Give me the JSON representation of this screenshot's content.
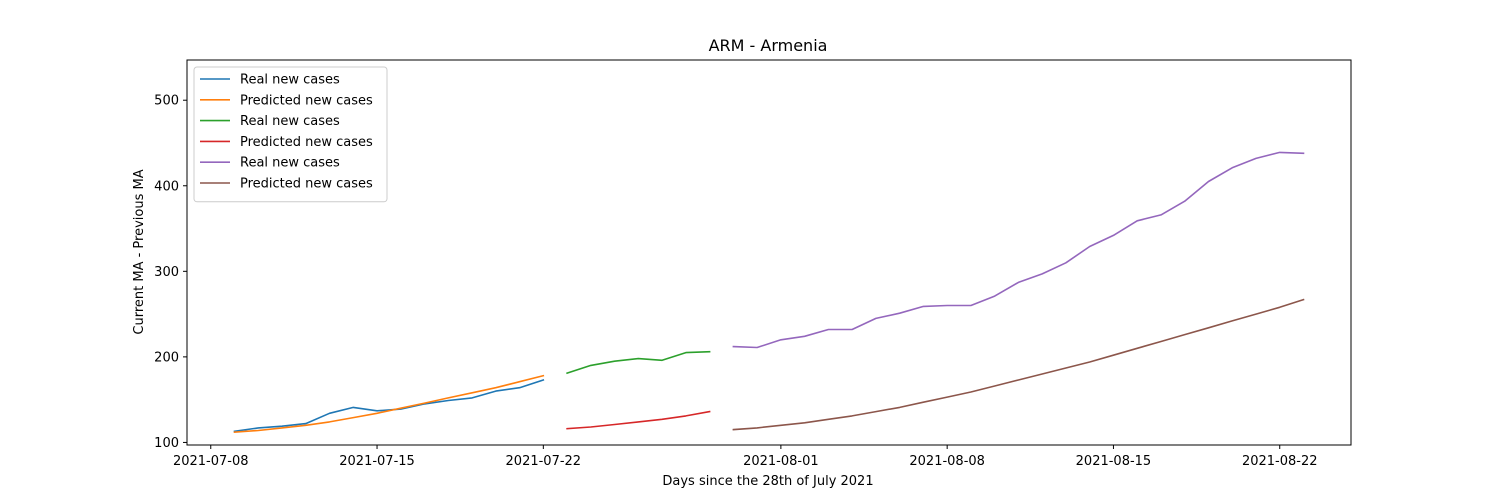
{
  "chart_data": {
    "type": "line",
    "title": "ARM - Armenia",
    "xlabel": "Days since the 28th of July 2021",
    "ylabel": "Current MA - Previous MA",
    "xlim": [
      "2021-07-07",
      "2021-08-25"
    ],
    "ylim": [
      97,
      547
    ],
    "x_ticks": [
      "2021-07-08",
      "2021-07-15",
      "2021-07-22",
      "2021-08-01",
      "2021-08-08",
      "2021-08-15",
      "2021-08-22"
    ],
    "y_ticks": [
      100,
      200,
      300,
      400,
      500
    ],
    "grid": false,
    "legend_position": "top-left",
    "series": [
      {
        "name": "Real new cases",
        "color": "#1f77b4",
        "x": [
          "2021-07-09",
          "2021-07-10",
          "2021-07-11",
          "2021-07-12",
          "2021-07-13",
          "2021-07-14",
          "2021-07-15",
          "2021-07-16",
          "2021-07-17",
          "2021-07-18",
          "2021-07-19",
          "2021-07-20",
          "2021-07-21",
          "2021-07-22"
        ],
        "y": [
          113,
          117,
          119,
          122,
          134,
          141,
          137,
          139,
          145,
          149,
          152,
          160,
          164,
          173
        ]
      },
      {
        "name": "Predicted new cases",
        "color": "#ff7f0e",
        "x": [
          "2021-07-09",
          "2021-07-10",
          "2021-07-11",
          "2021-07-12",
          "2021-07-13",
          "2021-07-14",
          "2021-07-15",
          "2021-07-16",
          "2021-07-17",
          "2021-07-18",
          "2021-07-19",
          "2021-07-20",
          "2021-07-21",
          "2021-07-22"
        ],
        "y": [
          112,
          114,
          117,
          120,
          124,
          129,
          134,
          140,
          146,
          152,
          158,
          164,
          171,
          178
        ]
      },
      {
        "name": "Real new cases",
        "color": "#2ca02c",
        "x": [
          "2021-07-23",
          "2021-07-24",
          "2021-07-25",
          "2021-07-26",
          "2021-07-27",
          "2021-07-28",
          "2021-07-29"
        ],
        "y": [
          181,
          190,
          195,
          198,
          196,
          205,
          206
        ]
      },
      {
        "name": "Predicted new cases",
        "color": "#d62728",
        "x": [
          "2021-07-23",
          "2021-07-24",
          "2021-07-25",
          "2021-07-26",
          "2021-07-27",
          "2021-07-28",
          "2021-07-29"
        ],
        "y": [
          116,
          118,
          121,
          124,
          127,
          131,
          136
        ]
      },
      {
        "name": "Real new cases",
        "color": "#9467bd",
        "x": [
          "2021-07-30",
          "2021-07-31",
          "2021-08-01",
          "2021-08-02",
          "2021-08-03",
          "2021-08-04",
          "2021-08-05",
          "2021-08-06",
          "2021-08-07",
          "2021-08-08",
          "2021-08-09",
          "2021-08-10",
          "2021-08-11",
          "2021-08-12",
          "2021-08-13",
          "2021-08-14",
          "2021-08-15",
          "2021-08-16",
          "2021-08-17",
          "2021-08-18",
          "2021-08-19",
          "2021-08-20",
          "2021-08-21",
          "2021-08-22",
          "2021-08-23"
        ],
        "y": [
          212,
          211,
          220,
          224,
          232,
          232,
          245,
          251,
          259,
          260,
          260,
          271,
          287,
          297,
          310,
          329,
          342,
          359,
          366,
          382,
          405,
          421,
          432,
          439,
          438
        ]
      },
      {
        "name": "Predicted new cases",
        "color": "#8c564b",
        "x": [
          "2021-07-30",
          "2021-07-31",
          "2021-08-01",
          "2021-08-02",
          "2021-08-03",
          "2021-08-04",
          "2021-08-05",
          "2021-08-06",
          "2021-08-07",
          "2021-08-08",
          "2021-08-09",
          "2021-08-10",
          "2021-08-11",
          "2021-08-12",
          "2021-08-13",
          "2021-08-14",
          "2021-08-15",
          "2021-08-16",
          "2021-08-17",
          "2021-08-18",
          "2021-08-19",
          "2021-08-20",
          "2021-08-21",
          "2021-08-22",
          "2021-08-23"
        ],
        "y": [
          115,
          117,
          120,
          123,
          127,
          131,
          136,
          141,
          147,
          153,
          159,
          166,
          173,
          180,
          187,
          194,
          202,
          210,
          218,
          226,
          234,
          242,
          250,
          258,
          267
        ]
      }
    ]
  }
}
